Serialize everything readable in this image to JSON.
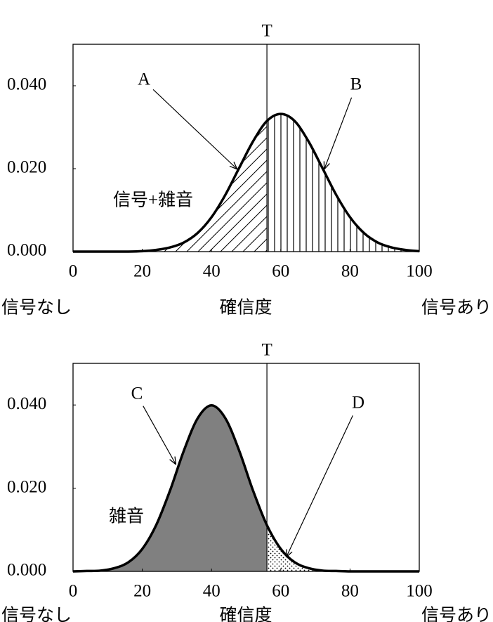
{
  "chart_data": [
    {
      "type": "area",
      "threshold": {
        "value": 56,
        "label": "T"
      },
      "xlim": [
        0,
        100
      ],
      "ylim": [
        0,
        0.05
      ],
      "xticks": [
        0,
        20,
        40,
        60,
        80,
        100
      ],
      "yticks": [
        {
          "value": 0,
          "label": "0.000"
        },
        {
          "value": 0.02,
          "label": "0.020"
        },
        {
          "value": 0.04,
          "label": "0.040"
        }
      ],
      "xlabel": "確信度",
      "xlabel_left": "信号なし",
      "xlabel_right": "信号あり",
      "annotations": [
        "A",
        "B"
      ],
      "x": [
        0,
        4,
        8,
        12,
        16,
        20,
        24,
        28,
        32,
        36,
        40,
        44,
        48,
        52,
        56,
        60,
        64,
        68,
        72,
        76,
        80,
        84,
        88,
        92,
        96,
        100
      ],
      "series": [
        {
          "name": "信号+雑音",
          "color": "#000000",
          "fills": [
            "hatch",
            "vlines"
          ],
          "values": [
            0,
            0,
            0,
            0,
            0,
            0.0001,
            0.0004,
            0.001,
            0.0022,
            0.0045,
            0.0083,
            0.0137,
            0.0202,
            0.0266,
            0.0315,
            0.0332,
            0.0315,
            0.0266,
            0.0202,
            0.0137,
            0.0083,
            0.0045,
            0.0022,
            0.001,
            0.0004,
            0.0001
          ]
        }
      ]
    },
    {
      "type": "area",
      "threshold": {
        "value": 56,
        "label": "T"
      },
      "xlim": [
        0,
        100
      ],
      "ylim": [
        0,
        0.05
      ],
      "xticks": [
        0,
        20,
        40,
        60,
        80,
        100
      ],
      "yticks": [
        {
          "value": 0,
          "label": "0.000"
        },
        {
          "value": 0.02,
          "label": "0.020"
        },
        {
          "value": 0.04,
          "label": "0.040"
        }
      ],
      "xlabel": "確信度",
      "xlabel_left": "信号なし",
      "xlabel_right": "信号あり",
      "annotations": [
        "C",
        "D"
      ],
      "x": [
        0,
        4,
        8,
        12,
        16,
        20,
        24,
        28,
        32,
        36,
        40,
        44,
        48,
        52,
        56,
        60,
        64,
        68,
        72,
        76,
        80,
        84,
        88,
        92,
        96,
        100
      ],
      "series": [
        {
          "name": "雑音",
          "color": "#000000",
          "fills": [
            "gray",
            "dots"
          ],
          "values": [
            0,
            0.0001,
            0.0002,
            0.0008,
            0.0022,
            0.0054,
            0.0111,
            0.0194,
            0.029,
            0.0368,
            0.0399,
            0.0368,
            0.029,
            0.0194,
            0.0111,
            0.0054,
            0.0022,
            0.0008,
            0.0002,
            0.0001,
            0,
            0,
            0,
            0,
            0,
            0
          ]
        }
      ]
    }
  ]
}
